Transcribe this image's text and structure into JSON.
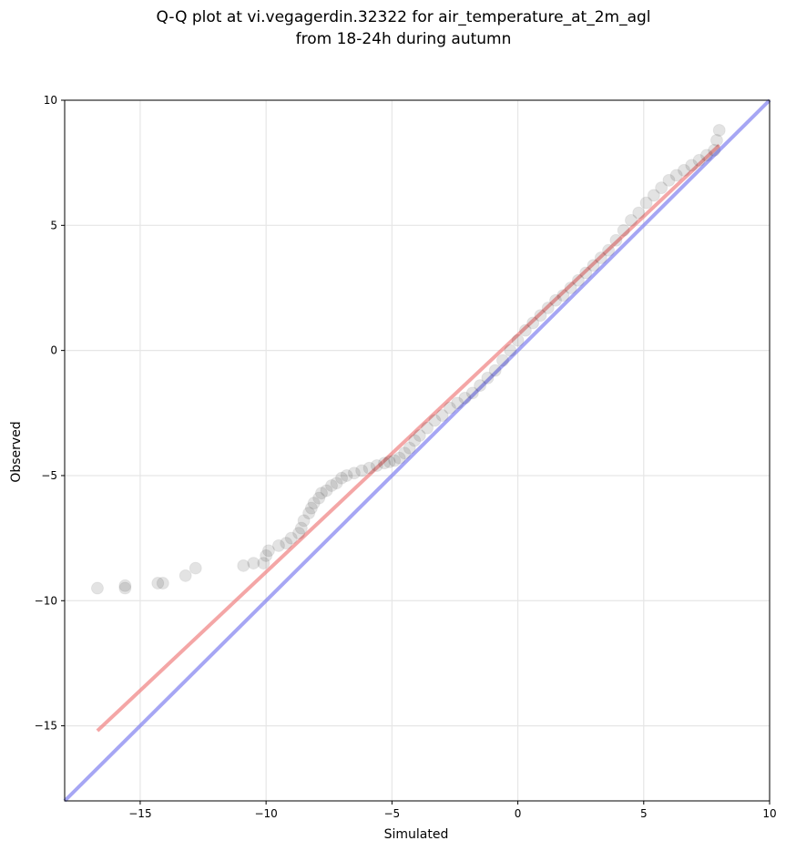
{
  "chart_data": {
    "type": "scatter",
    "title": "Q-Q plot at vi.vegagerdin.32322 for air_temperature_at_2m_agl",
    "subtitle": "from 18-24h during autumn",
    "xlabel": "Simulated",
    "ylabel": "Observed",
    "xlim": [
      -18,
      10
    ],
    "ylim": [
      -18,
      10
    ],
    "grid": true,
    "xticks": [
      -15,
      -10,
      -5,
      0,
      5,
      10
    ],
    "yticks": [
      -15,
      -10,
      -5,
      0,
      5,
      10
    ],
    "xtick_labels": [
      "−15",
      "−10",
      "−5",
      "0",
      "5",
      "10"
    ],
    "ytick_labels": [
      "−15",
      "−10",
      "−5",
      "0",
      "5",
      "10"
    ],
    "colors": {
      "points": "#000000",
      "fit_line": "#f08080",
      "identity_line": "#8080f0",
      "grid": "#e6e6e6"
    },
    "series": [
      {
        "kind": "points",
        "x": [
          -16.7,
          -15.6,
          -15.6,
          -14.3,
          -14.1,
          -13.2,
          -12.8,
          -10.9,
          -10.5,
          -10.1,
          -10.0,
          -9.9,
          -9.5,
          -9.2,
          -9.0,
          -8.7,
          -8.6,
          -8.5,
          -8.3,
          -8.2,
          -8.1,
          -7.9,
          -7.8,
          -7.6,
          -7.4,
          -7.2,
          -7.0,
          -6.8,
          -6.5,
          -6.2,
          -5.9,
          -5.6,
          -5.3,
          -5.1,
          -4.9,
          -4.7,
          -4.5,
          -4.3,
          -4.1,
          -3.9,
          -3.6,
          -3.3,
          -3.0,
          -2.7,
          -2.4,
          -2.1,
          -1.8,
          -1.5,
          -1.2,
          -0.9,
          -0.6,
          -0.3,
          0.0,
          0.3,
          0.6,
          0.9,
          1.2,
          1.5,
          1.8,
          2.1,
          2.4,
          2.7,
          3.0,
          3.3,
          3.6,
          3.9,
          4.2,
          4.5,
          4.8,
          5.1,
          5.4,
          5.7,
          6.0,
          6.3,
          6.6,
          6.9,
          7.2,
          7.5,
          7.8,
          7.9,
          8.0
        ],
        "y": [
          -9.5,
          -9.5,
          -9.4,
          -9.3,
          -9.3,
          -9.0,
          -8.7,
          -8.6,
          -8.5,
          -8.5,
          -8.2,
          -8.0,
          -7.8,
          -7.7,
          -7.5,
          -7.3,
          -7.1,
          -6.8,
          -6.5,
          -6.3,
          -6.1,
          -5.9,
          -5.7,
          -5.6,
          -5.4,
          -5.3,
          -5.1,
          -5.0,
          -4.9,
          -4.8,
          -4.7,
          -4.6,
          -4.5,
          -4.45,
          -4.4,
          -4.3,
          -4.1,
          -3.9,
          -3.6,
          -3.4,
          -3.1,
          -2.8,
          -2.6,
          -2.3,
          -2.1,
          -1.9,
          -1.7,
          -1.4,
          -1.1,
          -0.8,
          -0.4,
          0.0,
          0.4,
          0.8,
          1.1,
          1.4,
          1.7,
          2.0,
          2.2,
          2.5,
          2.8,
          3.1,
          3.4,
          3.7,
          4.0,
          4.4,
          4.8,
          5.2,
          5.5,
          5.9,
          6.2,
          6.5,
          6.8,
          7.0,
          7.2,
          7.4,
          7.6,
          7.8,
          8.0,
          8.4,
          8.8
        ]
      },
      {
        "kind": "fit_line",
        "x": [
          -16.7,
          8.0
        ],
        "y": [
          -15.2,
          8.2
        ]
      },
      {
        "kind": "identity_line",
        "x": [
          -18,
          10
        ],
        "y": [
          -18,
          10
        ]
      }
    ]
  }
}
